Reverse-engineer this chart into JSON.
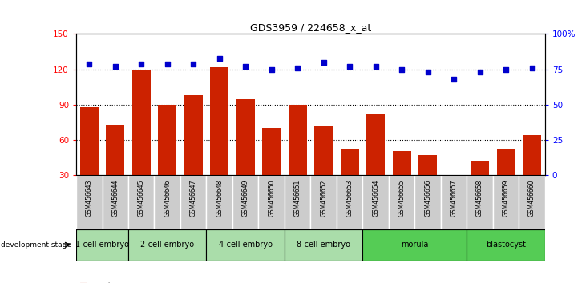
{
  "title": "GDS3959 / 224658_x_at",
  "categories": [
    "GSM456643",
    "GSM456644",
    "GSM456645",
    "GSM456646",
    "GSM456647",
    "GSM456648",
    "GSM456649",
    "GSM456650",
    "GSM456651",
    "GSM456652",
    "GSM456653",
    "GSM456654",
    "GSM456655",
    "GSM456656",
    "GSM456657",
    "GSM456658",
    "GSM456659",
    "GSM456660"
  ],
  "counts": [
    88,
    73,
    120,
    90,
    98,
    122,
    95,
    70,
    90,
    72,
    53,
    82,
    51,
    47,
    27,
    42,
    52,
    64
  ],
  "percentiles": [
    79,
    77,
    79,
    79,
    79,
    83,
    77,
    75,
    76,
    80,
    77,
    77,
    75,
    73,
    68,
    73,
    75,
    76
  ],
  "stages": [
    {
      "label": "1-cell embryo",
      "start": 0,
      "end": 2
    },
    {
      "label": "2-cell embryo",
      "start": 2,
      "end": 5
    },
    {
      "label": "4-cell embryo",
      "start": 5,
      "end": 8
    },
    {
      "label": "8-cell embryo",
      "start": 8,
      "end": 11
    },
    {
      "label": "morula",
      "start": 11,
      "end": 15
    },
    {
      "label": "blastocyst",
      "start": 15,
      "end": 18
    }
  ],
  "ylim_left": [
    30,
    150
  ],
  "ylim_right": [
    0,
    100
  ],
  "bar_color": "#CC2200",
  "dot_color": "#0000CC",
  "grid_lines": [
    60,
    90,
    120
  ],
  "right_yticks": [
    0,
    25,
    50,
    75,
    100
  ],
  "right_yticklabels": [
    "0",
    "25",
    "50",
    "75",
    "100%"
  ],
  "left_yticks": [
    30,
    60,
    90,
    120,
    150
  ],
  "stage_colors": [
    "#AADDAA",
    "#66CC66"
  ],
  "light_green": "#AADDAA",
  "bright_green": "#44CC44"
}
